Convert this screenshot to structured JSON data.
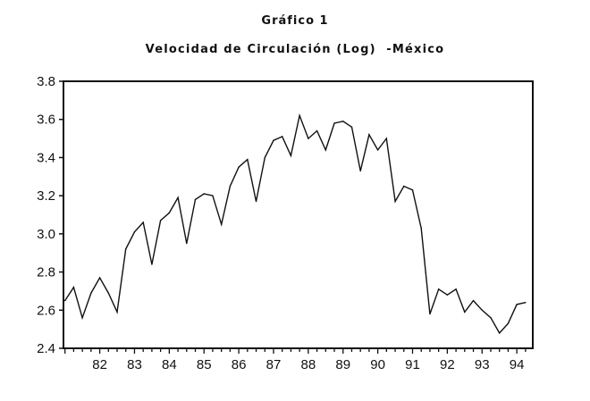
{
  "chart_data": {
    "type": "line",
    "title": "Gráfico 1",
    "subtitle": "Velocidad de Circulación (Log)  -México",
    "xlabel": "",
    "ylabel": "",
    "ylim": [
      2.4,
      3.8
    ],
    "yticks": [
      "2.4",
      "2.6",
      "2.8",
      "3.0",
      "3.2",
      "3.4",
      "3.6",
      "3.8"
    ],
    "xticks": [
      "82",
      "83",
      "84",
      "85",
      "86",
      "87",
      "88",
      "89",
      "90",
      "91",
      "92",
      "93",
      "94"
    ],
    "x_start": "1981Q1",
    "frequency": "quarterly",
    "grid": false,
    "line_color": "#111111",
    "values": [
      2.65,
      2.72,
      2.56,
      2.69,
      2.77,
      2.69,
      2.59,
      2.92,
      3.01,
      3.06,
      2.84,
      3.07,
      3.11,
      3.19,
      2.95,
      3.18,
      3.21,
      3.2,
      3.05,
      3.25,
      3.35,
      3.39,
      3.17,
      3.4,
      3.49,
      3.51,
      3.41,
      3.62,
      3.5,
      3.54,
      3.44,
      3.58,
      3.59,
      3.56,
      3.33,
      3.52,
      3.44,
      3.5,
      3.17,
      3.25,
      3.23,
      3.03,
      2.58,
      2.71,
      2.68,
      2.71,
      2.59,
      2.65,
      2.6,
      2.56,
      2.48,
      2.53,
      2.63,
      2.64
    ]
  }
}
